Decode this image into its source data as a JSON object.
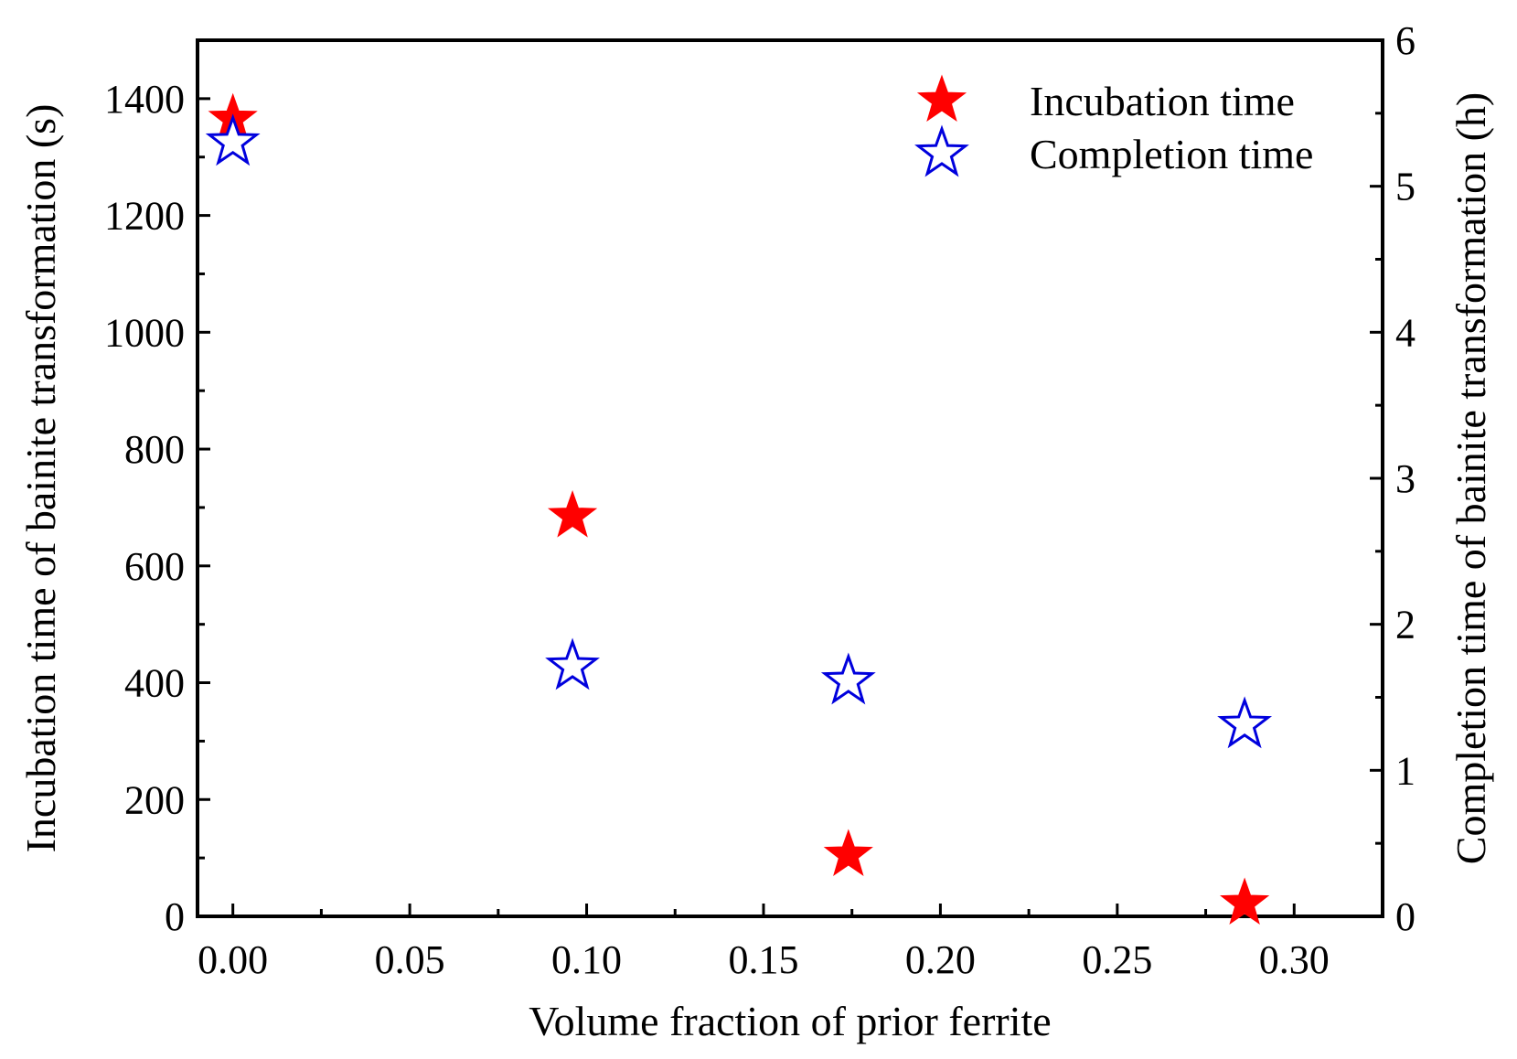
{
  "chart_data": {
    "type": "scatter",
    "title": "",
    "xlabel": "Volume fraction of prior ferrite",
    "ylabel_left": "Incubation time of bainite transformation (s)",
    "ylabel_right": "Completion time of bainite transformation (h)",
    "xlim": [
      -0.01,
      0.325
    ],
    "ylim_left": [
      0,
      1500
    ],
    "ylim_right": [
      0,
      6.0
    ],
    "x_ticks": [
      "0.00",
      "0.05",
      "0.10",
      "0.15",
      "0.20",
      "0.25",
      "0.30"
    ],
    "y_left_ticks": [
      "0",
      "200",
      "400",
      "600",
      "800",
      "1000",
      "1200",
      "1400"
    ],
    "y_right_ticks": [
      "0",
      "1",
      "2",
      "3",
      "4",
      "5",
      "6"
    ],
    "legend_position": "top-right",
    "grid": false,
    "series": [
      {
        "name": "Incubation time",
        "axis": "left",
        "marker": "filled-star",
        "color": "#ff0000",
        "x": [
          0.0,
          0.096,
          0.174,
          0.286
        ],
        "y": [
          1365,
          685,
          105,
          22
        ]
      },
      {
        "name": "Completion time",
        "axis": "right",
        "marker": "open-star",
        "color": "#0000dd",
        "x": [
          0.0,
          0.096,
          0.174,
          0.286
        ],
        "y": [
          5.3,
          1.71,
          1.61,
          1.31
        ]
      }
    ]
  }
}
